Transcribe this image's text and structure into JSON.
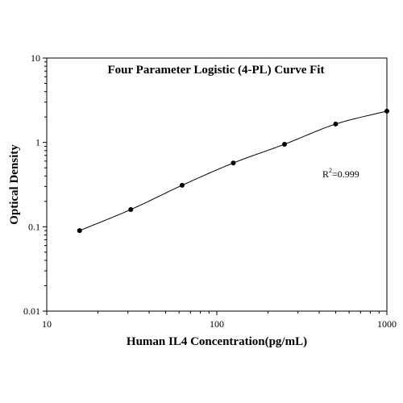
{
  "chart_data": {
    "type": "scatter",
    "title": "Four Parameter Logistic (4-PL) Curve Fit",
    "xlabel": "Human IL4 Concentration(pg/mL)",
    "ylabel": "Optical Density",
    "x_scale": "log",
    "y_scale": "log",
    "xlim": [
      10,
      1000
    ],
    "ylim": [
      0.01,
      10
    ],
    "x_ticks": [
      {
        "value": 10,
        "label": "10"
      },
      {
        "value": 100,
        "label": "100"
      },
      {
        "value": 1000,
        "label": "1000"
      }
    ],
    "y_ticks": [
      {
        "value": 0.01,
        "label": "0.01"
      },
      {
        "value": 0.1,
        "label": "0.1"
      },
      {
        "value": 1,
        "label": "1"
      },
      {
        "value": 10,
        "label": "10"
      }
    ],
    "grid": false,
    "legend": "none",
    "series": [
      {
        "x": [
          15.6,
          31.2,
          62.5,
          125,
          250,
          500,
          1000
        ],
        "y": [
          0.09,
          0.16,
          0.31,
          0.57,
          0.95,
          1.65,
          2.35
        ]
      }
    ],
    "annotation": {
      "prefix": "R",
      "superscript": "2",
      "suffix": "=0.999"
    },
    "colors": {
      "points": "#000000",
      "curve": "#000000",
      "axes": "#000000"
    }
  }
}
